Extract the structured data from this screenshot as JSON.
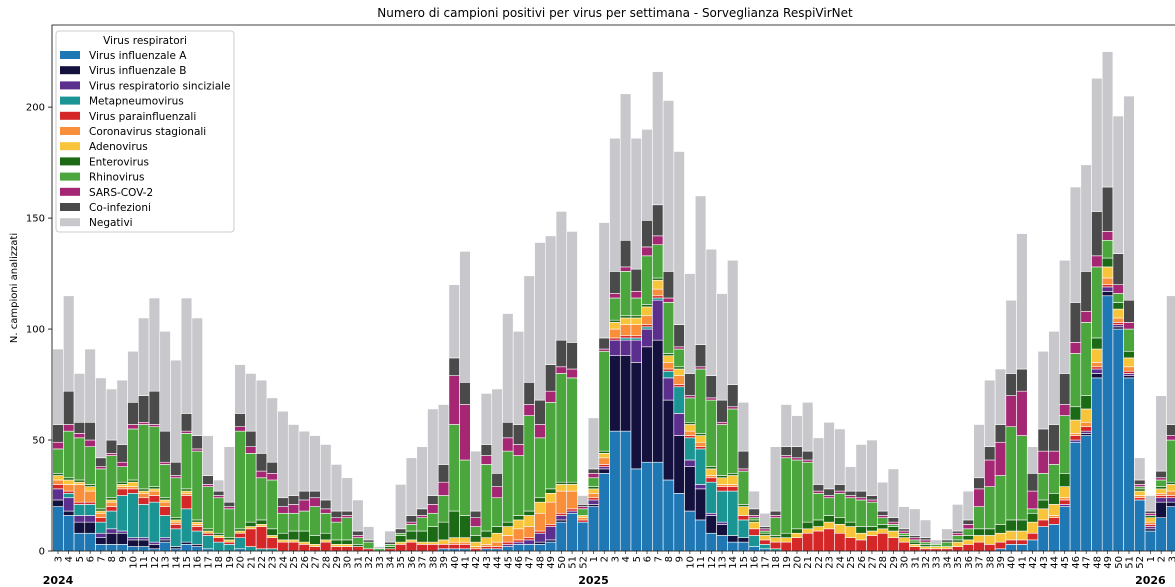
{
  "chart_data": {
    "type": "stacked_bar",
    "title": "Numero di campioni positivi per virus per settimana - Sorveglianza RespiVirNet",
    "y_label": "N. campioni analizzati",
    "legend_title": "Virus respiratori",
    "legend_position": "upper left",
    "year_labels": [
      "2024",
      "2025",
      "2026"
    ],
    "categories": [
      "3",
      "4",
      "5",
      "6",
      "7",
      "8",
      "9",
      "10",
      "11",
      "12",
      "13",
      "14",
      "15",
      "16",
      "17",
      "18",
      "19",
      "20",
      "21",
      "22",
      "23",
      "24",
      "25",
      "26",
      "27",
      "28",
      "29",
      "30",
      "31",
      "32",
      "33",
      "34",
      "35",
      "36",
      "37",
      "38",
      "39",
      "40",
      "41",
      "42",
      "43",
      "44",
      "45",
      "46",
      "47",
      "48",
      "49",
      "50",
      "51",
      "52",
      "1",
      "2",
      "3",
      "4",
      "5",
      "6",
      "7",
      "8",
      "9",
      "10",
      "11",
      "12",
      "13",
      "14",
      "15",
      "16",
      "17",
      "18",
      "19",
      "20",
      "21",
      "22",
      "23",
      "24",
      "25",
      "26",
      "27",
      "28",
      "29",
      "30",
      "31",
      "32",
      "33",
      "34",
      "35",
      "36",
      "37",
      "38",
      "39",
      "40",
      "41",
      "42",
      "43",
      "44",
      "45",
      "46",
      "47",
      "48",
      "49",
      "50",
      "51",
      "52",
      "1",
      "2",
      "3"
    ],
    "ylim": [
      0,
      237
    ],
    "yticks": [
      0,
      50,
      100,
      150,
      200
    ],
    "series": [
      {
        "name": "Virus influenzale A",
        "color": "#1f77b4",
        "values": [
          20,
          16,
          8,
          8,
          3,
          3,
          3,
          2,
          2,
          1,
          4,
          1,
          3,
          2,
          1,
          0,
          0,
          1,
          0,
          0,
          0,
          0,
          0,
          0,
          0,
          0,
          0,
          0,
          0,
          0,
          0,
          0,
          0,
          0,
          0,
          0,
          1,
          1,
          1,
          0,
          1,
          1,
          2,
          3,
          3,
          3,
          4,
          13,
          17,
          13,
          20,
          35,
          54,
          54,
          37,
          40,
          40,
          32,
          26,
          18,
          14,
          8,
          7,
          4,
          4,
          2,
          1,
          0,
          0,
          0,
          0,
          0,
          0,
          0,
          0,
          0,
          0,
          0,
          0,
          0,
          0,
          0,
          0,
          0,
          0,
          0,
          0,
          0,
          1,
          3,
          3,
          5,
          11,
          12,
          20,
          49,
          52,
          78,
          115,
          100,
          78,
          23,
          9,
          15,
          20
        ]
      },
      {
        "name": "Virus influenzale B",
        "color": "#15113f",
        "values": [
          3,
          2,
          5,
          5,
          3,
          5,
          5,
          3,
          3,
          2,
          1,
          1,
          1,
          1,
          0,
          0,
          0,
          0,
          0,
          0,
          0,
          0,
          0,
          0,
          0,
          0,
          0,
          0,
          0,
          0,
          0,
          0,
          0,
          0,
          0,
          0,
          0,
          0,
          0,
          0,
          0,
          0,
          0,
          0,
          0,
          1,
          1,
          1,
          0,
          0,
          1,
          2,
          34,
          34,
          48,
          52,
          55,
          36,
          26,
          20,
          14,
          8,
          5,
          3,
          2,
          0,
          0,
          0,
          0,
          0,
          0,
          0,
          0,
          0,
          0,
          0,
          0,
          0,
          0,
          0,
          0,
          0,
          0,
          0,
          0,
          0,
          0,
          0,
          0,
          0,
          0,
          0,
          0,
          0,
          0,
          0,
          1,
          2,
          2,
          1,
          1,
          0,
          1,
          7,
          2
        ]
      },
      {
        "name": "Virus respiratorio sinciziale",
        "color": "#5c2f8f",
        "values": [
          5,
          6,
          3,
          3,
          2,
          2,
          1,
          1,
          1,
          1,
          1,
          0,
          0,
          0,
          0,
          0,
          0,
          0,
          0,
          0,
          0,
          0,
          0,
          0,
          0,
          0,
          0,
          0,
          0,
          0,
          0,
          0,
          0,
          0,
          0,
          0,
          0,
          0,
          0,
          0,
          0,
          0,
          1,
          1,
          2,
          4,
          6,
          2,
          1,
          0,
          2,
          1,
          7,
          7,
          10,
          8,
          18,
          10,
          10,
          3,
          2,
          1,
          1,
          0,
          0,
          0,
          0,
          0,
          0,
          0,
          0,
          0,
          0,
          0,
          0,
          0,
          0,
          0,
          0,
          0,
          0,
          0,
          0,
          0,
          0,
          0,
          0,
          0,
          0,
          0,
          0,
          0,
          0,
          0,
          1,
          1,
          1,
          2,
          2,
          1,
          1,
          0,
          1,
          2,
          2
        ]
      },
      {
        "name": "Metapneumovirus",
        "color": "#1b9494",
        "values": [
          0,
          2,
          5,
          5,
          5,
          8,
          16,
          20,
          15,
          18,
          10,
          8,
          15,
          6,
          6,
          4,
          3,
          5,
          2,
          1,
          1,
          0,
          0,
          0,
          0,
          0,
          0,
          0,
          0,
          0,
          0,
          0,
          0,
          0,
          0,
          0,
          0,
          0,
          0,
          0,
          0,
          0,
          0,
          0,
          0,
          0,
          0,
          0,
          0,
          0,
          0,
          0,
          0,
          1,
          1,
          1,
          1,
          3,
          12,
          10,
          16,
          14,
          14,
          20,
          8,
          5,
          2,
          1,
          0,
          0,
          0,
          0,
          0,
          0,
          0,
          0,
          0,
          0,
          0,
          0,
          0,
          0,
          0,
          0,
          0,
          0,
          0,
          0,
          0,
          0,
          0,
          0,
          0,
          0,
          0,
          0,
          0,
          0,
          0,
          0,
          0,
          0,
          0,
          0,
          0
        ]
      },
      {
        "name": "Virus parainfluenzali",
        "color": "#d62728",
        "values": [
          2,
          1,
          1,
          1,
          2,
          2,
          3,
          2,
          3,
          3,
          4,
          2,
          6,
          2,
          1,
          2,
          1,
          2,
          8,
          10,
          5,
          4,
          4,
          3,
          2,
          4,
          2,
          2,
          2,
          1,
          0,
          1,
          3,
          4,
          3,
          3,
          2,
          2,
          2,
          1,
          1,
          1,
          1,
          1,
          1,
          1,
          1,
          1,
          1,
          1,
          1,
          1,
          1,
          1,
          1,
          1,
          1,
          1,
          1,
          1,
          1,
          2,
          2,
          2,
          2,
          3,
          2,
          3,
          4,
          6,
          8,
          9,
          10,
          8,
          6,
          5,
          7,
          8,
          6,
          4,
          2,
          1,
          1,
          1,
          2,
          3,
          4,
          3,
          3,
          2,
          2,
          3,
          3,
          3,
          2,
          2,
          2,
          1,
          1,
          1,
          1,
          1,
          1,
          1,
          1
        ]
      },
      {
        "name": "Coronavirus stagionali",
        "color": "#f98f3a",
        "values": [
          2,
          3,
          8,
          5,
          2,
          2,
          1,
          1,
          2,
          2,
          2,
          1,
          1,
          1,
          0,
          0,
          0,
          0,
          0,
          0,
          0,
          0,
          0,
          0,
          0,
          0,
          0,
          0,
          0,
          0,
          0,
          0,
          0,
          0,
          0,
          0,
          0,
          1,
          1,
          1,
          1,
          2,
          3,
          5,
          5,
          8,
          10,
          10,
          8,
          1,
          2,
          3,
          4,
          5,
          5,
          4,
          3,
          3,
          4,
          2,
          2,
          1,
          1,
          1,
          0,
          0,
          0,
          0,
          0,
          0,
          0,
          0,
          0,
          0,
          0,
          0,
          0,
          0,
          0,
          0,
          0,
          0,
          0,
          0,
          0,
          0,
          0,
          0,
          0,
          0,
          0,
          0,
          0,
          1,
          1,
          1,
          2,
          2,
          3,
          2,
          2,
          1,
          1,
          1,
          2
        ]
      },
      {
        "name": "Adenovirus",
        "color": "#f7c43a",
        "values": [
          2,
          2,
          1,
          2,
          1,
          1,
          1,
          2,
          1,
          1,
          1,
          1,
          1,
          1,
          1,
          1,
          1,
          1,
          1,
          1,
          1,
          1,
          1,
          1,
          1,
          1,
          1,
          1,
          0,
          0,
          0,
          0,
          1,
          1,
          1,
          1,
          2,
          2,
          2,
          2,
          3,
          4,
          4,
          4,
          5,
          5,
          4,
          3,
          3,
          1,
          2,
          2,
          3,
          3,
          3,
          4,
          4,
          3,
          3,
          3,
          3,
          3,
          3,
          4,
          4,
          3,
          2,
          2,
          2,
          2,
          2,
          2,
          3,
          4,
          5,
          3,
          2,
          2,
          3,
          2,
          1,
          1,
          1,
          1,
          2,
          2,
          3,
          4,
          4,
          4,
          4,
          5,
          5,
          5,
          5,
          6,
          6,
          6,
          5,
          4,
          4,
          2,
          2,
          2,
          3
        ]
      },
      {
        "name": "Enterovirus",
        "color": "#1c6a15",
        "values": [
          1,
          1,
          1,
          1,
          1,
          1,
          1,
          1,
          1,
          1,
          1,
          1,
          1,
          1,
          1,
          1,
          1,
          1,
          2,
          2,
          3,
          3,
          4,
          5,
          4,
          3,
          2,
          2,
          1,
          0,
          0,
          1,
          3,
          4,
          5,
          7,
          8,
          12,
          10,
          3,
          3,
          3,
          2,
          2,
          2,
          2,
          2,
          1,
          1,
          0,
          1,
          1,
          1,
          1,
          1,
          1,
          1,
          1,
          1,
          1,
          1,
          1,
          1,
          1,
          1,
          1,
          1,
          1,
          2,
          2,
          3,
          3,
          3,
          3,
          2,
          3,
          2,
          2,
          2,
          1,
          1,
          1,
          0,
          0,
          1,
          2,
          3,
          3,
          4,
          5,
          5,
          4,
          4,
          5,
          6,
          6,
          6,
          5,
          4,
          3,
          3,
          1,
          1,
          1,
          1
        ]
      },
      {
        "name": "Rhinovirus",
        "color": "#4ba73d",
        "values": [
          11,
          21,
          19,
          17,
          18,
          19,
          7,
          23,
          29,
          27,
          15,
          18,
          25,
          31,
          19,
          16,
          13,
          44,
          31,
          19,
          22,
          9,
          8,
          9,
          13,
          9,
          8,
          10,
          3,
          3,
          1,
          1,
          1,
          3,
          6,
          6,
          12,
          39,
          25,
          4,
          30,
          13,
          32,
          27,
          43,
          27,
          39,
          49,
          47,
          3,
          4,
          45,
          10,
          20,
          8,
          22,
          15,
          23,
          8,
          11,
          29,
          30,
          23,
          29,
          15,
          1,
          1,
          8,
          34,
          31,
          27,
          12,
          8,
          11,
          11,
          12,
          11,
          3,
          1,
          1,
          1,
          1,
          1,
          2,
          2,
          3,
          10,
          19,
          22,
          42,
          38,
          2,
          12,
          13,
          26,
          24,
          33,
          32,
          8,
          4,
          10,
          1,
          0,
          3,
          19
        ]
      },
      {
        "name": "SARS-COV-2",
        "color": "#a52673",
        "values": [
          3,
          3,
          2,
          3,
          1,
          1,
          2,
          2,
          1,
          1,
          1,
          1,
          1,
          1,
          1,
          1,
          1,
          2,
          3,
          3,
          3,
          3,
          4,
          5,
          4,
          2,
          2,
          1,
          1,
          0,
          0,
          0,
          0,
          1,
          1,
          4,
          6,
          22,
          25,
          4,
          4,
          5,
          6,
          5,
          5,
          6,
          5,
          3,
          4,
          1,
          2,
          1,
          2,
          2,
          3,
          4,
          4,
          2,
          1,
          1,
          1,
          1,
          1,
          1,
          1,
          1,
          1,
          1,
          1,
          1,
          1,
          1,
          1,
          1,
          1,
          1,
          1,
          1,
          1,
          1,
          1,
          1,
          0,
          0,
          1,
          2,
          8,
          12,
          15,
          14,
          20,
          8,
          10,
          6,
          5,
          5,
          5,
          5,
          4,
          4,
          3,
          1,
          1,
          1,
          2
        ]
      },
      {
        "name": "Co-infezioni",
        "color": "#4a4a4a",
        "values": [
          8,
          15,
          5,
          8,
          4,
          6,
          8,
          10,
          12,
          15,
          14,
          6,
          8,
          6,
          4,
          2,
          2,
          6,
          7,
          8,
          5,
          4,
          4,
          4,
          3,
          4,
          3,
          2,
          2,
          1,
          0,
          1,
          2,
          3,
          3,
          4,
          8,
          8,
          10,
          3,
          5,
          6,
          7,
          9,
          10,
          11,
          12,
          12,
          12,
          1,
          2,
          5,
          10,
          12,
          10,
          12,
          14,
          12,
          10,
          10,
          10,
          10,
          10,
          10,
          8,
          3,
          1,
          2,
          4,
          5,
          4,
          3,
          3,
          3,
          2,
          3,
          2,
          2,
          2,
          1,
          1,
          1,
          0,
          1,
          1,
          2,
          5,
          6,
          8,
          10,
          10,
          8,
          10,
          12,
          14,
          18,
          18,
          20,
          20,
          14,
          10,
          2,
          1,
          3,
          5
        ]
      },
      {
        "name": "Negativi",
        "color": "#c8c8cc",
        "values": [
          34,
          43,
          22,
          33,
          36,
          23,
          29,
          23,
          35,
          42,
          45,
          46,
          52,
          53,
          18,
          5,
          25,
          22,
          26,
          33,
          29,
          39,
          32,
          27,
          25,
          25,
          21,
          15,
          14,
          6,
          1,
          5,
          20,
          26,
          28,
          39,
          27,
          33,
          59,
          27,
          23,
          38,
          49,
          42,
          48,
          71,
          58,
          58,
          50,
          4,
          23,
          52,
          60,
          66,
          59,
          41,
          60,
          77,
          78,
          45,
          67,
          57,
          48,
          56,
          22,
          8,
          6,
          29,
          19,
          14,
          22,
          21,
          30,
          25,
          11,
          21,
          25,
          13,
          22,
          10,
          12,
          8,
          2,
          5,
          12,
          13,
          24,
          30,
          25,
          33,
          61,
          12,
          35,
          42,
          51,
          52,
          48,
          60,
          61,
          62,
          92,
          10,
          7,
          34,
          58
        ]
      }
    ]
  }
}
